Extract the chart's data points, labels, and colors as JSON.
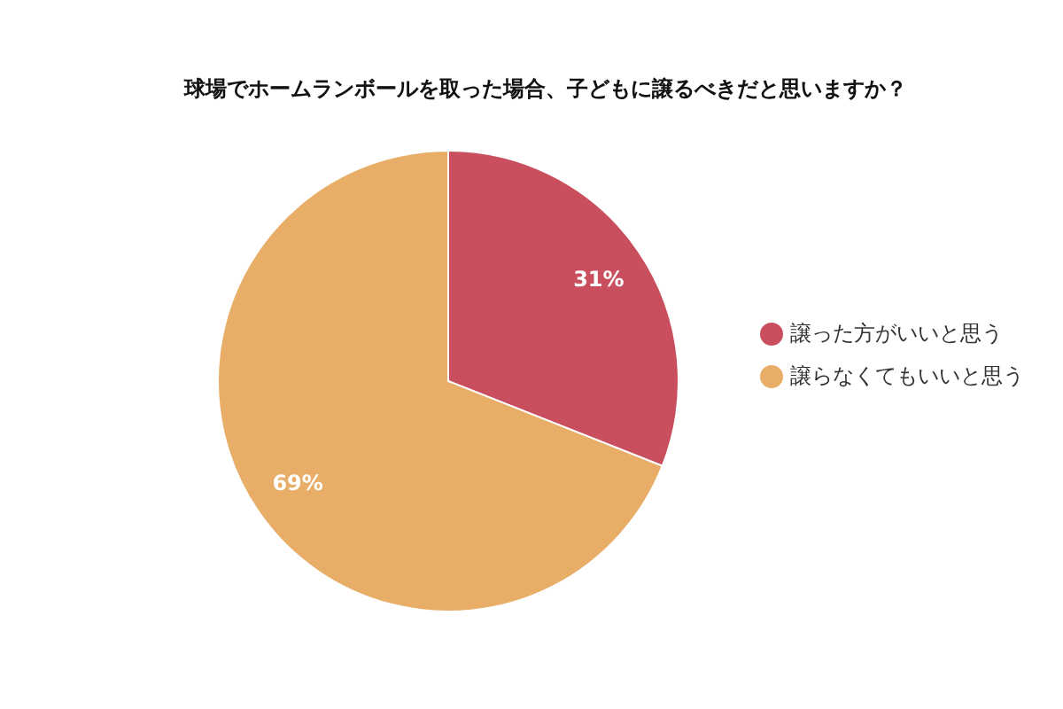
{
  "chart_data": {
    "type": "pie",
    "title": "球場でホームランボールを取った場合、子どもに譲るべきだと思いますか？",
    "categories": [
      "譲った方がいいと思う",
      "譲らなくてもいいと思う"
    ],
    "values": [
      31,
      69
    ],
    "colors": [
      "#c94f5e",
      "#e8ae68"
    ],
    "value_labels": [
      "31%",
      "69%"
    ],
    "legend": "right"
  }
}
